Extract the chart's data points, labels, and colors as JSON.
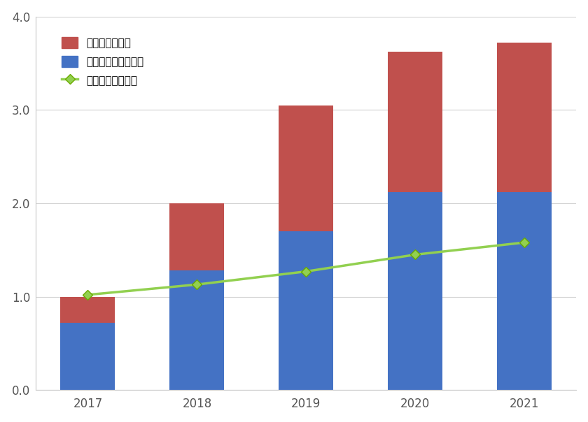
{
  "years": [
    2017,
    2018,
    2019,
    2020,
    2021
  ],
  "blue_values": [
    0.72,
    1.28,
    1.7,
    2.12,
    2.12
  ],
  "red_values": [
    0.28,
    0.72,
    1.35,
    1.5,
    1.6
  ],
  "line_values": [
    1.02,
    1.13,
    1.27,
    1.45,
    1.58
  ],
  "blue_color": "#4472C4",
  "red_color": "#C0504D",
  "line_color": "#92D050",
  "line_edge_color": "#6aaa00",
  "legend_labels": [
    "保険金（大口）",
    "保険金（大口以外）",
    "発電量（太陽光）"
  ],
  "ylim": [
    0.0,
    4.0
  ],
  "yticks": [
    0.0,
    1.0,
    2.0,
    3.0,
    4.0
  ],
  "plot_background": "#ffffff",
  "fig_background": "#ffffff",
  "border_color": "#c8c8c8",
  "grid_color": "#d0d0d0",
  "tick_label_color": "#555555"
}
